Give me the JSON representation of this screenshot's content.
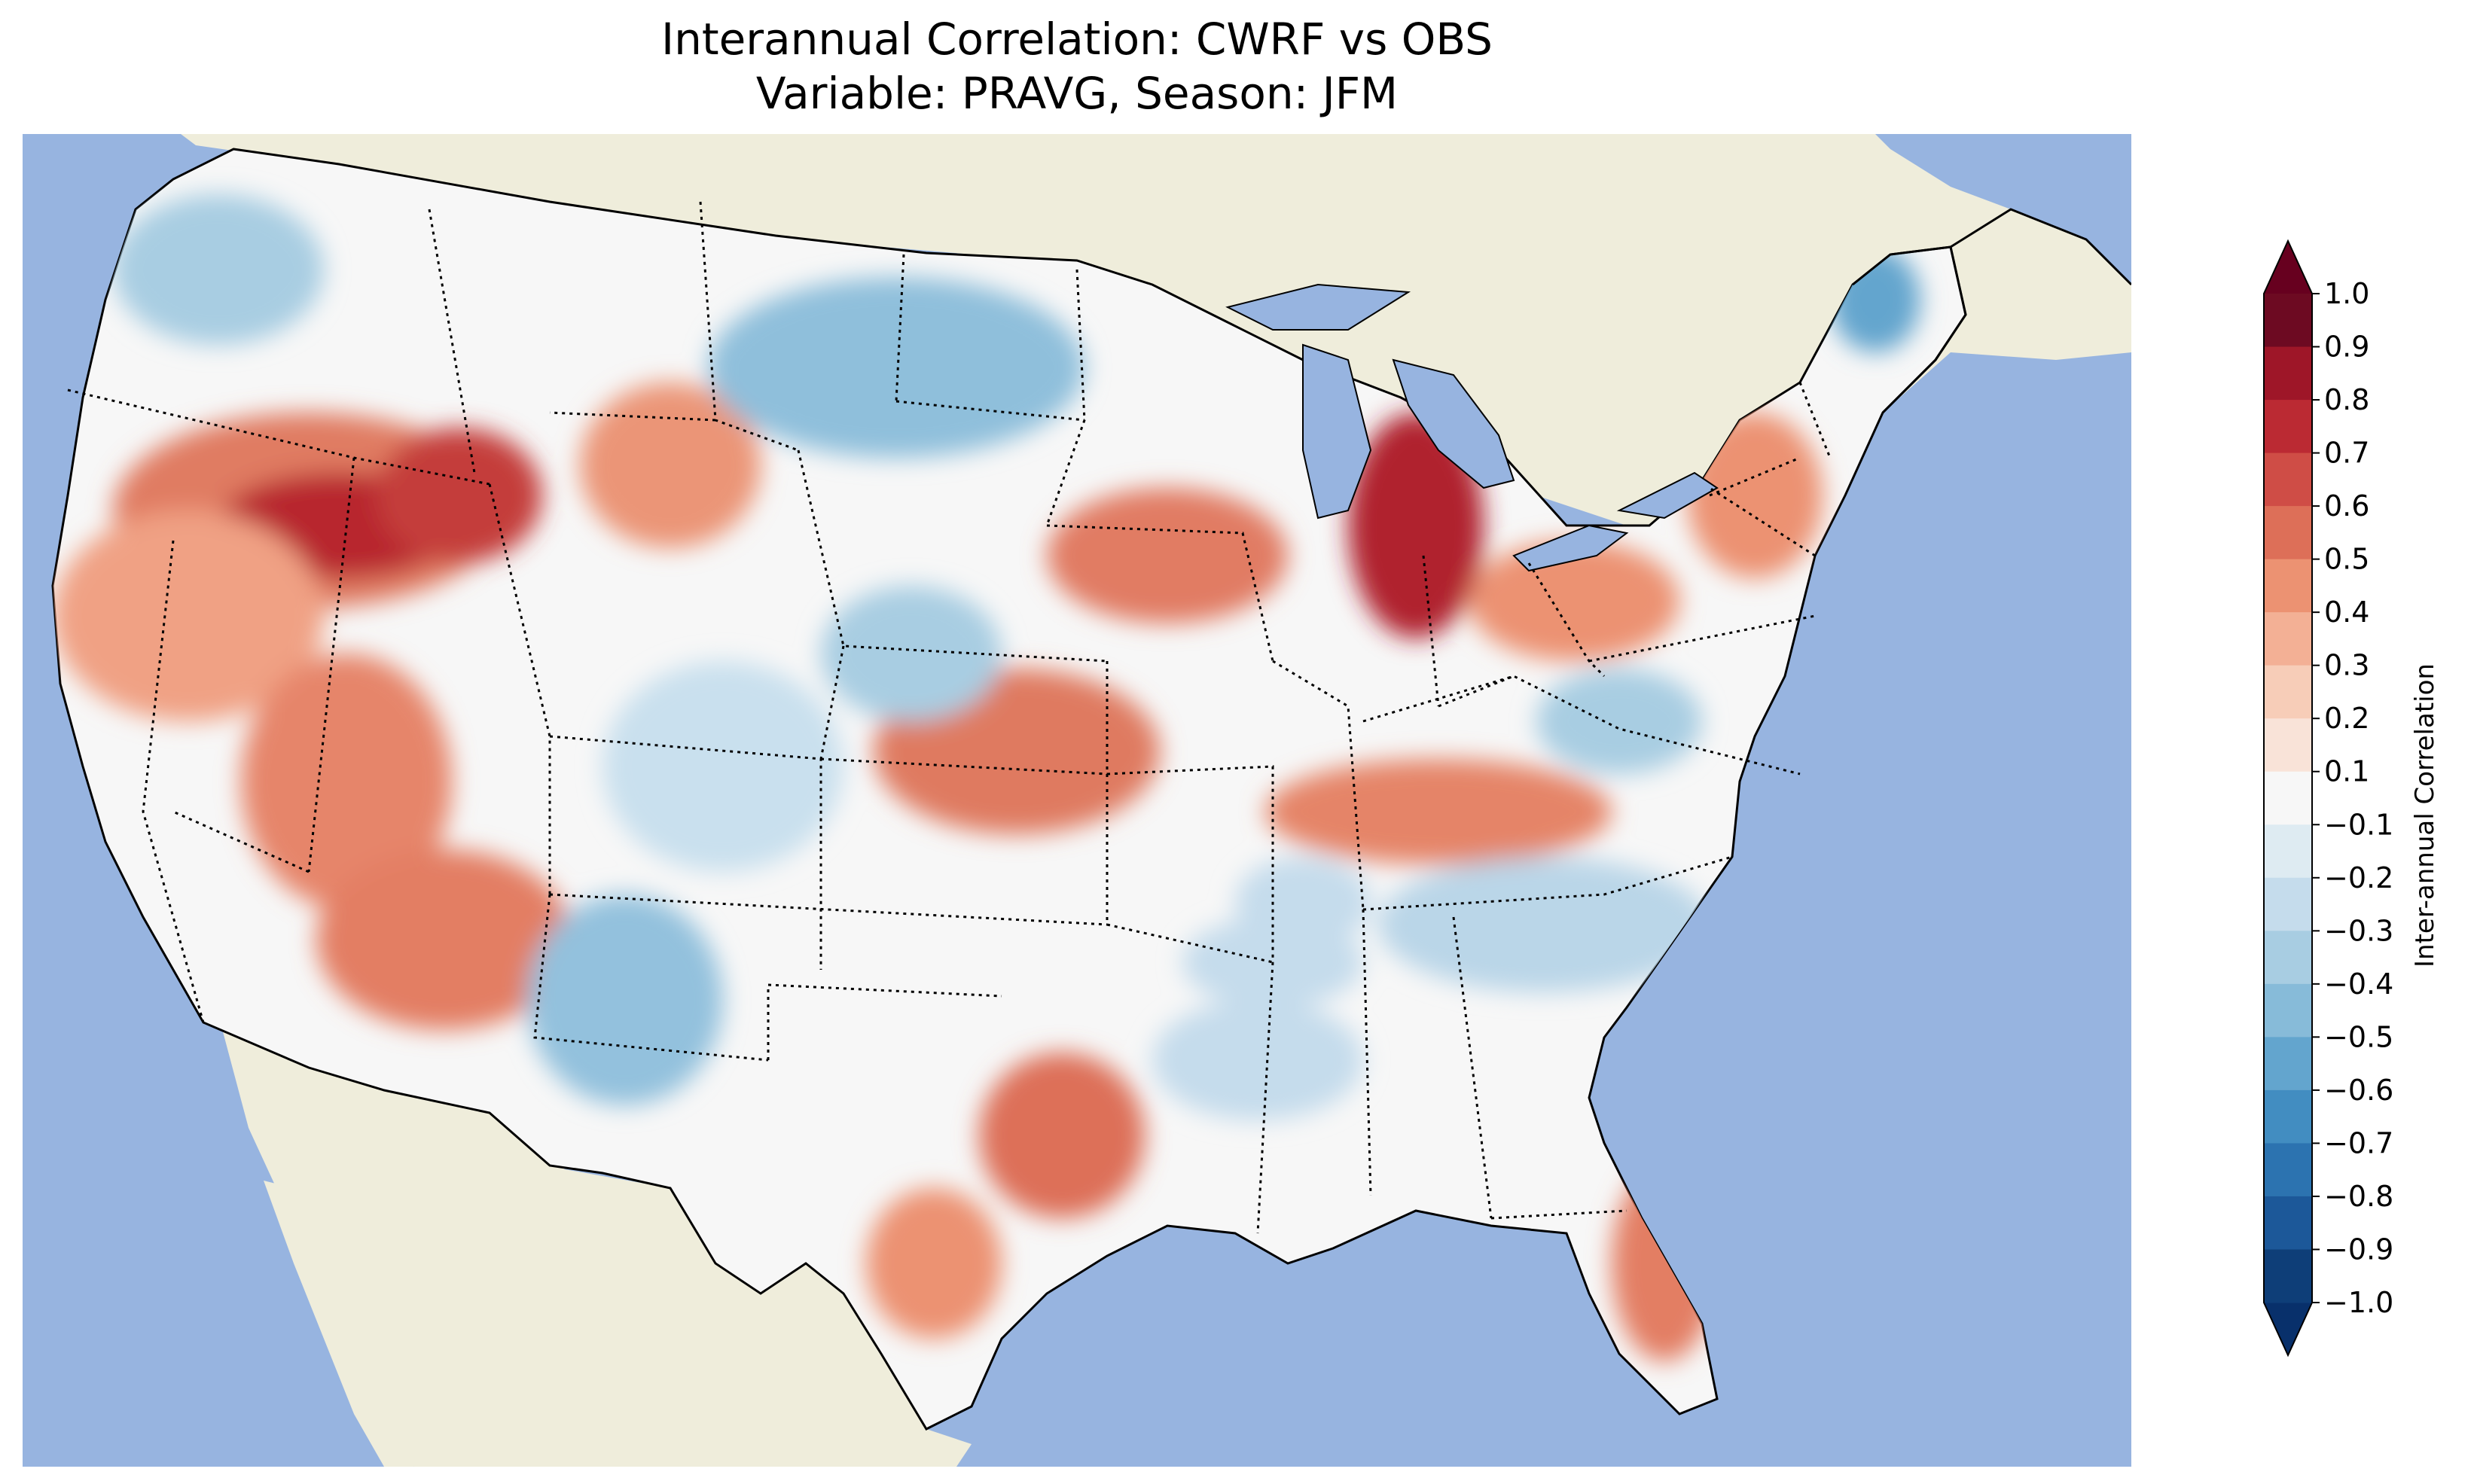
{
  "title": {
    "line1": "Interannual Correlation: CWRF vs OBS",
    "line2": "Variable: PRAVG, Season: JFM"
  },
  "map": {
    "region": "Contiguous United States",
    "land_color": "#efeddb",
    "ocean_color": "#97b4e0",
    "state_borders": "dotted",
    "coastlines": "solid black"
  },
  "colorbar": {
    "label": "Inter-annual Correlation",
    "levels": [
      -1.0,
      -0.9,
      -0.8,
      -0.7,
      -0.6,
      -0.5,
      -0.4,
      -0.3,
      -0.2,
      -0.1,
      0.1,
      0.2,
      0.3,
      0.4,
      0.5,
      0.6,
      0.7,
      0.8,
      0.9,
      1.0
    ],
    "tick_labels": [
      "1.0",
      "0.9",
      "0.8",
      "0.7",
      "0.6",
      "0.5",
      "0.4",
      "0.3",
      "0.2",
      "0.1",
      "−0.1",
      "−0.2",
      "−0.3",
      "−0.4",
      "−0.5",
      "−0.6",
      "−0.7",
      "−0.8",
      "−0.9",
      "−1.0"
    ],
    "colors": [
      "#6d0a22",
      "#9e1628",
      "#bb2a33",
      "#cf4d46",
      "#dd6f58",
      "#ec9272",
      "#f3b095",
      "#f7cdb8",
      "#f9e3d8",
      "#f7f7f7",
      "#deebf2",
      "#c5dcec",
      "#a8cde2",
      "#87bbd9",
      "#63a5ce",
      "#428dc1",
      "#2c73b0",
      "#1c5899",
      "#0e3e78"
    ],
    "extend": "both",
    "extend_min_color": "#08306b",
    "extend_max_color": "#67001f"
  }
}
